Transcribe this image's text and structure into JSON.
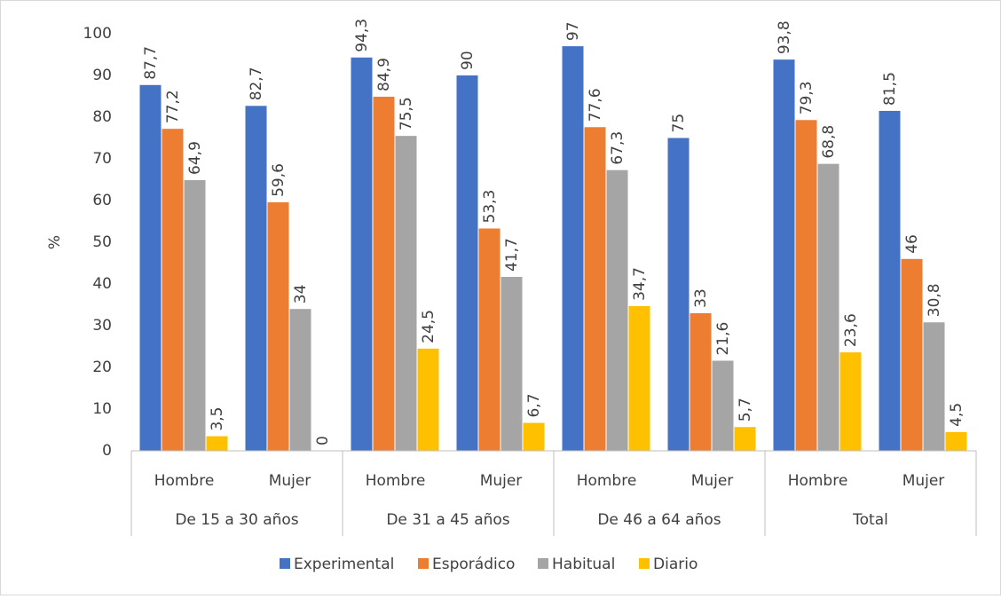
{
  "chart_data": {
    "type": "bar",
    "ylabel": "%",
    "categories": [
      "Hombre",
      "Mujer",
      "Hombre",
      "Mujer",
      "Hombre",
      "Mujer",
      "Hombre",
      "Mujer"
    ],
    "groups": [
      "De 15 a 30 años",
      "De 31 a 45 años",
      "De 46 a 64 años",
      "Total"
    ],
    "series": [
      {
        "name": "Experimental",
        "color": "#4472c4",
        "values": [
          87.7,
          82.7,
          94.3,
          90,
          97,
          75,
          93.8,
          81.5
        ],
        "value_labels": [
          "87,7",
          "82,7",
          "94,3",
          "90",
          "97",
          "75",
          "93,8",
          "81,5"
        ]
      },
      {
        "name": "Esporádico",
        "color": "#ed7d31",
        "values": [
          77.2,
          59.6,
          84.9,
          53.3,
          77.6,
          33,
          79.3,
          46
        ],
        "value_labels": [
          "77,2",
          "59,6",
          "84,9",
          "53,3",
          "77,6",
          "33",
          "79,3",
          "46"
        ]
      },
      {
        "name": "Habitual",
        "color": "#a5a5a5",
        "values": [
          64.9,
          34,
          75.5,
          41.7,
          67.3,
          21.6,
          68.8,
          30.8
        ],
        "value_labels": [
          "64,9",
          "34",
          "75,5",
          "41,7",
          "67,3",
          "21,6",
          "68,8",
          "30,8"
        ]
      },
      {
        "name": "Diario",
        "color": "#ffc000",
        "values": [
          3.5,
          0,
          24.5,
          6.7,
          34.7,
          5.7,
          23.6,
          4.5
        ],
        "value_labels": [
          "3,5",
          "0",
          "24,5",
          "6,7",
          "34,7",
          "5,7",
          "23,6",
          "4,5"
        ]
      }
    ],
    "ylim": [
      0,
      100
    ],
    "yticks": [
      0,
      10,
      20,
      30,
      40,
      50,
      60,
      70,
      80,
      90,
      100
    ],
    "grid": false,
    "legend": "bottom"
  }
}
